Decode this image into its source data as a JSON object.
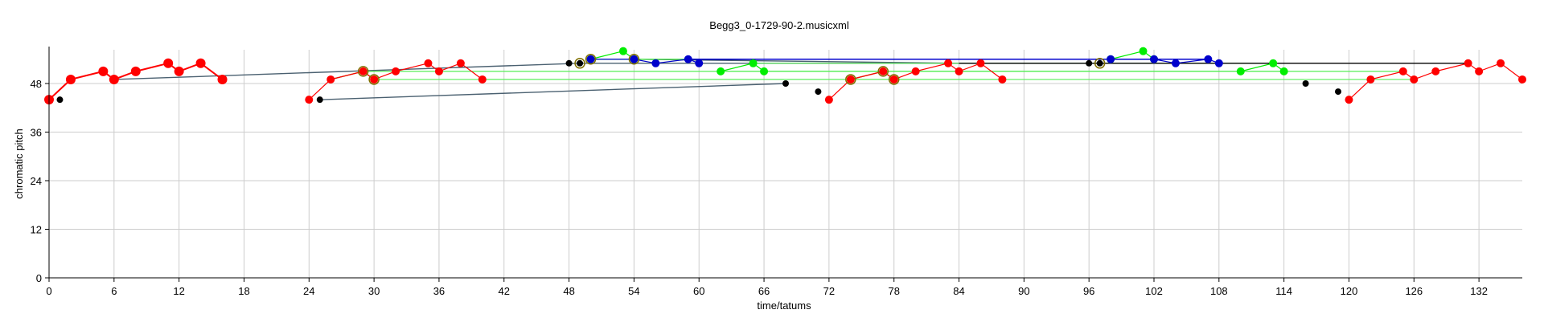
{
  "chart_data": {
    "type": "scatter",
    "title": "Begg3_0-1729-90-2.musicxml",
    "xlabel": "time/tatums",
    "ylabel": "chromatic pitch",
    "xlim": [
      0,
      136
    ],
    "ylim": [
      0,
      56
    ],
    "xticks": [
      0,
      6,
      12,
      18,
      24,
      30,
      36,
      42,
      48,
      54,
      60,
      66,
      72,
      78,
      84,
      90,
      96,
      102,
      108,
      114,
      120,
      126,
      132
    ],
    "yticks": [
      0,
      12,
      24,
      36,
      48
    ],
    "grid": true,
    "colors": {
      "red": "#ff0000",
      "green": "#00ee00",
      "blue": "#0000cc",
      "black": "#000000",
      "olive": "#807000",
      "slate": "#4a6070",
      "link_green": "#55ee55",
      "grid": "#cccccc"
    },
    "series": [
      {
        "color": "red",
        "line": true,
        "large": true,
        "points": [
          [
            0,
            44
          ],
          [
            2,
            49
          ],
          [
            5,
            51
          ],
          [
            6,
            49
          ],
          [
            8,
            51
          ],
          [
            11,
            53
          ],
          [
            12,
            51
          ],
          [
            14,
            53
          ],
          [
            16,
            49
          ]
        ]
      },
      {
        "color": "red",
        "line": true,
        "points": [
          [
            24,
            44
          ],
          [
            26,
            49
          ],
          [
            29,
            51
          ],
          [
            30,
            49
          ],
          [
            32,
            51
          ],
          [
            35,
            53
          ],
          [
            36,
            51
          ],
          [
            38,
            53
          ],
          [
            40,
            49
          ]
        ]
      },
      {
        "color": "red",
        "line": true,
        "points": [
          [
            72,
            44
          ],
          [
            74,
            49
          ],
          [
            77,
            51
          ],
          [
            78,
            49
          ],
          [
            80,
            51
          ],
          [
            83,
            53
          ],
          [
            84,
            51
          ],
          [
            86,
            53
          ],
          [
            88,
            49
          ]
        ]
      },
      {
        "color": "red",
        "line": true,
        "points": [
          [
            120,
            44
          ],
          [
            122,
            49
          ],
          [
            125,
            51
          ],
          [
            126,
            49
          ],
          [
            128,
            51
          ],
          [
            131,
            53
          ],
          [
            132,
            51
          ],
          [
            134,
            53
          ],
          [
            136,
            49
          ]
        ]
      },
      {
        "color": "green",
        "line": true,
        "points": [
          [
            50,
            54
          ],
          [
            53,
            56
          ],
          [
            54,
            54
          ]
        ]
      },
      {
        "color": "green",
        "line": true,
        "points": [
          [
            62,
            51
          ],
          [
            65,
            53
          ],
          [
            66,
            51
          ]
        ]
      },
      {
        "color": "green",
        "line": true,
        "points": [
          [
            98,
            54
          ],
          [
            101,
            56
          ],
          [
            102,
            54
          ]
        ]
      },
      {
        "color": "green",
        "line": true,
        "points": [
          [
            110,
            51
          ],
          [
            113,
            53
          ],
          [
            114,
            51
          ]
        ]
      },
      {
        "color": "blue",
        "line": true,
        "points": [
          [
            50,
            54
          ],
          [
            54,
            54
          ],
          [
            56,
            53
          ],
          [
            59,
            54
          ],
          [
            60,
            53
          ]
        ]
      },
      {
        "color": "blue",
        "line": true,
        "points": [
          [
            98,
            54
          ],
          [
            102,
            54
          ],
          [
            104,
            53
          ],
          [
            107,
            54
          ],
          [
            108,
            53
          ]
        ]
      },
      {
        "color": "black",
        "line": false,
        "points": [
          [
            1,
            44
          ],
          [
            25,
            44
          ],
          [
            48,
            53
          ],
          [
            49,
            53
          ],
          [
            68,
            48
          ],
          [
            71,
            46
          ],
          [
            96,
            53
          ],
          [
            97,
            53
          ],
          [
            116,
            48
          ],
          [
            119,
            46
          ]
        ]
      }
    ],
    "links": [
      {
        "color": "slate",
        "from": [
          6,
          49
        ],
        "to": [
          49,
          53
        ]
      },
      {
        "color": "slate",
        "from": [
          25,
          44
        ],
        "to": [
          68,
          48
        ]
      },
      {
        "color": "slate",
        "from": [
          49,
          53
        ],
        "to": [
          97,
          53
        ]
      },
      {
        "color": "slate",
        "from": [
          54,
          54
        ],
        "to": [
          84,
          53
        ]
      },
      {
        "color": "olive",
        "from": [
          26,
          49
        ],
        "to": [
          29,
          51
        ]
      },
      {
        "color": "olive",
        "from": [
          29,
          51
        ],
        "to": [
          30,
          49
        ]
      },
      {
        "color": "olive",
        "from": [
          74,
          49
        ],
        "to": [
          77,
          51
        ]
      },
      {
        "color": "olive",
        "from": [
          77,
          51
        ],
        "to": [
          78,
          49
        ]
      },
      {
        "color": "link_green",
        "from": [
          30,
          49
        ],
        "to": [
          78,
          49
        ]
      },
      {
        "color": "link_green",
        "from": [
          29,
          51
        ],
        "to": [
          77,
          51
        ]
      },
      {
        "color": "link_green",
        "from": [
          50,
          54
        ],
        "to": [
          98,
          54
        ]
      },
      {
        "color": "link_green",
        "from": [
          54,
          54
        ],
        "to": [
          102,
          54
        ]
      },
      {
        "color": "link_green",
        "from": [
          62,
          51
        ],
        "to": [
          110,
          51
        ]
      },
      {
        "color": "link_green",
        "from": [
          65,
          53
        ],
        "to": [
          113,
          53
        ]
      },
      {
        "color": "link_green",
        "from": [
          66,
          51
        ],
        "to": [
          114,
          51
        ]
      },
      {
        "color": "link_green",
        "from": [
          78,
          49
        ],
        "to": [
          126,
          49
        ]
      },
      {
        "color": "link_green",
        "from": [
          77,
          51
        ],
        "to": [
          125,
          51
        ]
      },
      {
        "color": "link_green",
        "from": [
          40,
          49
        ],
        "to": [
          88,
          49
        ]
      },
      {
        "color": "blue",
        "from": [
          59,
          54
        ],
        "to": [
          107,
          54
        ]
      },
      {
        "color": "black",
        "from": [
          84,
          53
        ],
        "to": [
          131,
          53
        ]
      }
    ],
    "rings": [
      [
        29,
        51
      ],
      [
        30,
        49
      ],
      [
        50,
        54
      ],
      [
        54,
        54
      ],
      [
        49,
        53
      ],
      [
        74,
        49
      ],
      [
        77,
        51
      ],
      [
        78,
        49
      ],
      [
        97,
        53
      ]
    ]
  }
}
